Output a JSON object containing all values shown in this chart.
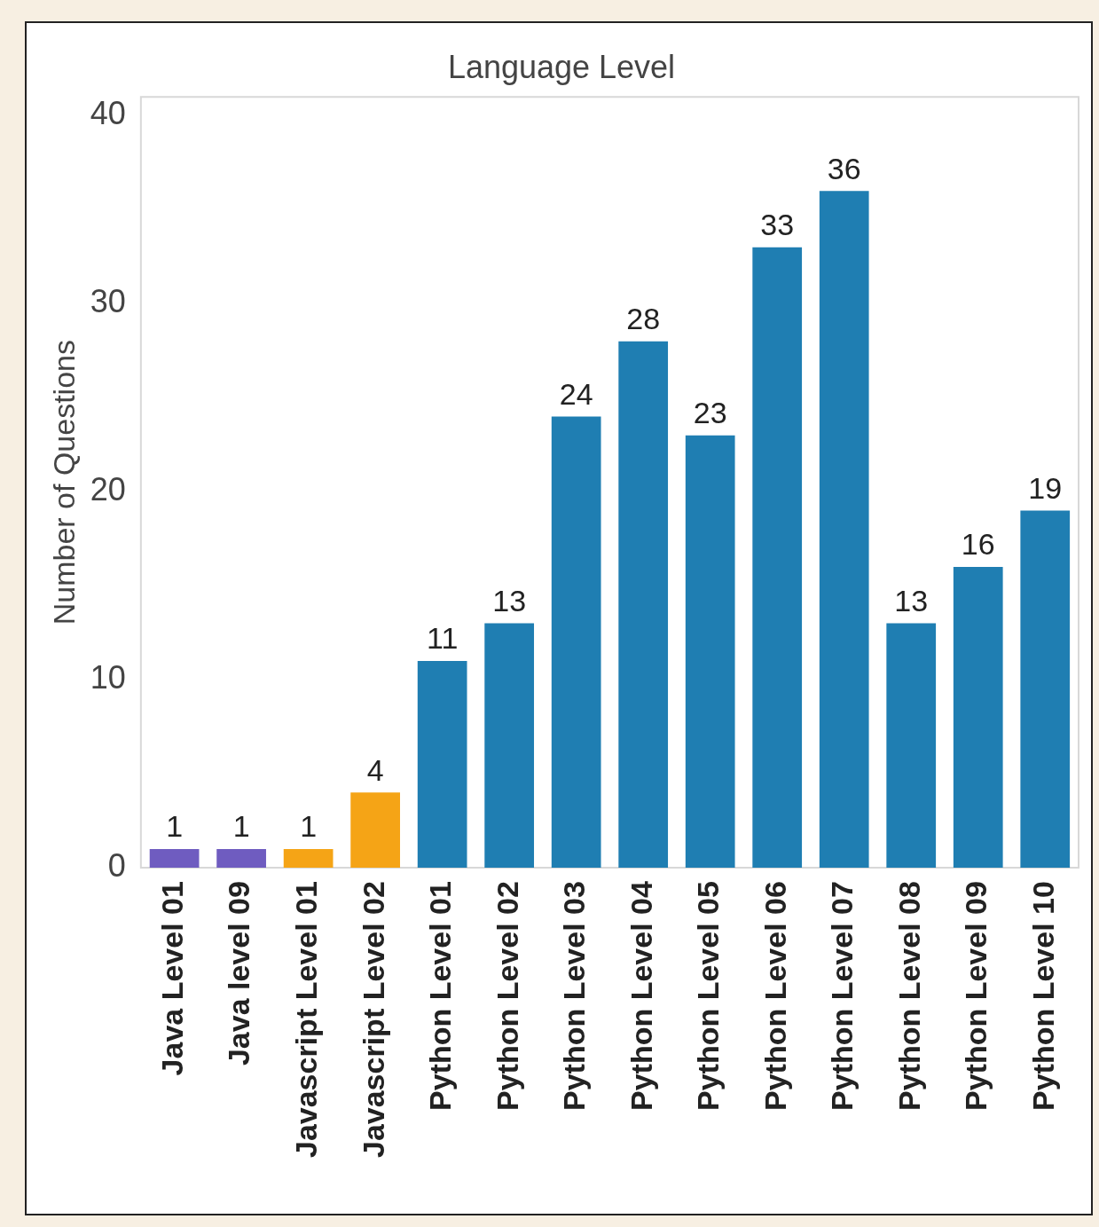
{
  "chart_data": {
    "type": "bar",
    "title": "Language Level",
    "ylabel": "Number of Questions",
    "categories": [
      "Java Level 01",
      "Java level 09",
      "Javascript Level 01",
      "Javascript Level 02",
      "Python Level 01",
      "Python Level 02",
      "Python Level 03",
      "Python Level 04",
      "Python Level 05",
      "Python Level 06",
      "Python Level 07",
      "Python Level 08",
      "Python Level 09",
      "Python Level 10"
    ],
    "values": [
      1,
      1,
      1,
      4,
      11,
      13,
      24,
      28,
      23,
      33,
      36,
      13,
      16,
      19
    ],
    "colors": [
      "#6f5cc0",
      "#6f5cc0",
      "#f5a416",
      "#f5a416",
      "#1f7eb2",
      "#1f7eb2",
      "#1f7eb2",
      "#1f7eb2",
      "#1f7eb2",
      "#1f7eb2",
      "#1f7eb2",
      "#1f7eb2",
      "#1f7eb2",
      "#1f7eb2"
    ],
    "ylim": [
      0,
      41
    ],
    "yticks": [
      0,
      10,
      20,
      30,
      40
    ],
    "data_labels": true
  }
}
